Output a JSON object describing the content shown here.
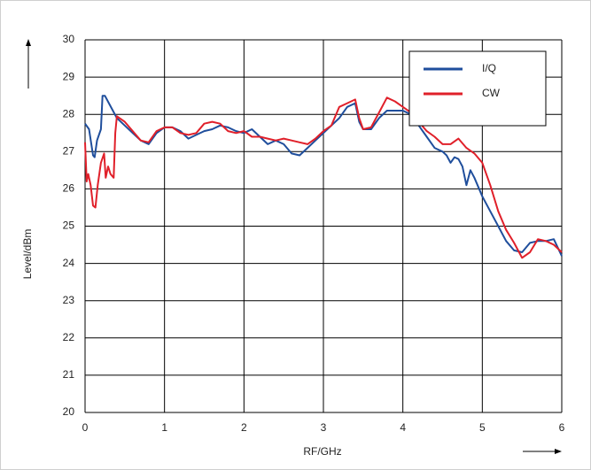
{
  "chart_data": {
    "type": "line",
    "xlabel": "RF/GHz",
    "ylabel": "Level/dBm",
    "xlim": [
      0,
      6
    ],
    "xticks": [
      0,
      1,
      2,
      3,
      4,
      5,
      6
    ],
    "ylim": [
      20,
      30
    ],
    "yticks": [
      20,
      21,
      22,
      23,
      24,
      25,
      26,
      27,
      28,
      29,
      30
    ],
    "grid": true,
    "legend": "upper right",
    "series": [
      {
        "name": "I/Q",
        "color": "#1f4e9c",
        "x": [
          0,
          0.05,
          0.1,
          0.12,
          0.15,
          0.2,
          0.22,
          0.25,
          0.3,
          0.35,
          0.4,
          0.5,
          0.6,
          0.7,
          0.8,
          0.9,
          1.0,
          1.1,
          1.2,
          1.3,
          1.4,
          1.5,
          1.6,
          1.7,
          1.8,
          1.9,
          2.0,
          2.1,
          2.2,
          2.3,
          2.4,
          2.5,
          2.6,
          2.7,
          2.8,
          2.9,
          3.0,
          3.1,
          3.2,
          3.3,
          3.4,
          3.45,
          3.5,
          3.6,
          3.7,
          3.8,
          3.9,
          4.0,
          4.1,
          4.2,
          4.3,
          4.4,
          4.5,
          4.55,
          4.6,
          4.65,
          4.7,
          4.75,
          4.8,
          4.85,
          4.9,
          5.0,
          5.1,
          5.2,
          5.3,
          5.4,
          5.5,
          5.6,
          5.7,
          5.8,
          5.9,
          6.0
        ],
        "values": [
          27.75,
          27.6,
          26.9,
          26.85,
          27.3,
          27.6,
          28.5,
          28.5,
          28.3,
          28.1,
          27.9,
          27.7,
          27.5,
          27.3,
          27.2,
          27.5,
          27.65,
          27.65,
          27.55,
          27.35,
          27.45,
          27.55,
          27.6,
          27.7,
          27.65,
          27.55,
          27.5,
          27.6,
          27.4,
          27.2,
          27.3,
          27.2,
          26.95,
          26.9,
          27.1,
          27.3,
          27.5,
          27.7,
          27.9,
          28.2,
          28.3,
          27.8,
          27.6,
          27.6,
          27.9,
          28.1,
          28.1,
          28.1,
          28.0,
          27.7,
          27.4,
          27.1,
          27.0,
          26.9,
          26.7,
          26.85,
          26.8,
          26.6,
          26.1,
          26.5,
          26.3,
          25.8,
          25.4,
          25.0,
          24.6,
          24.35,
          24.3,
          24.55,
          24.6,
          24.6,
          24.65,
          24.2
        ]
      },
      {
        "name": "CW",
        "color": "#e0202a",
        "x": [
          0,
          0.02,
          0.04,
          0.07,
          0.1,
          0.13,
          0.16,
          0.2,
          0.24,
          0.26,
          0.29,
          0.32,
          0.36,
          0.38,
          0.4,
          0.5,
          0.6,
          0.7,
          0.8,
          0.9,
          1.0,
          1.1,
          1.2,
          1.3,
          1.4,
          1.5,
          1.6,
          1.7,
          1.8,
          1.9,
          2.0,
          2.1,
          2.2,
          2.3,
          2.4,
          2.5,
          2.6,
          2.7,
          2.8,
          2.9,
          3.0,
          3.1,
          3.2,
          3.3,
          3.4,
          3.45,
          3.5,
          3.6,
          3.7,
          3.8,
          3.9,
          4.0,
          4.1,
          4.2,
          4.3,
          4.4,
          4.5,
          4.6,
          4.7,
          4.8,
          4.9,
          5.0,
          5.1,
          5.2,
          5.3,
          5.4,
          5.5,
          5.6,
          5.7,
          5.8,
          5.9,
          6.0
        ],
        "values": [
          27.25,
          26.2,
          26.4,
          26.1,
          25.55,
          25.5,
          26.1,
          26.7,
          26.95,
          26.3,
          26.6,
          26.4,
          26.3,
          27.5,
          27.95,
          27.8,
          27.55,
          27.3,
          27.25,
          27.55,
          27.65,
          27.65,
          27.5,
          27.45,
          27.5,
          27.75,
          27.8,
          27.75,
          27.55,
          27.5,
          27.55,
          27.4,
          27.4,
          27.35,
          27.3,
          27.35,
          27.3,
          27.25,
          27.2,
          27.35,
          27.55,
          27.7,
          28.2,
          28.3,
          28.4,
          27.9,
          27.6,
          27.65,
          28.05,
          28.45,
          28.35,
          28.2,
          28.05,
          27.8,
          27.55,
          27.4,
          27.2,
          27.2,
          27.35,
          27.1,
          26.95,
          26.7,
          26.1,
          25.4,
          24.9,
          24.55,
          24.15,
          24.3,
          24.65,
          24.6,
          24.5,
          24.3
        ]
      }
    ]
  }
}
